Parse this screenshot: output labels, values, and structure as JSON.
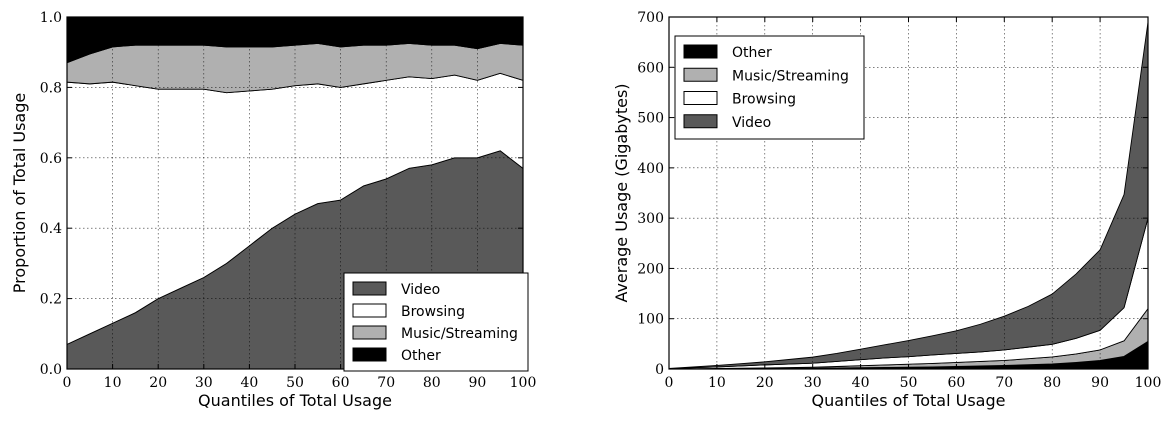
{
  "chart_data": [
    {
      "type": "area",
      "stacked": true,
      "xlabel": "Quantiles of Total Usage",
      "ylabel": "Proportion of Total Usage",
      "xlim": [
        0,
        100
      ],
      "ylim": [
        0,
        1.0
      ],
      "xticks": [
        0,
        10,
        20,
        30,
        40,
        50,
        60,
        70,
        80,
        90,
        100
      ],
      "yticks": [
        0.0,
        0.2,
        0.4,
        0.6,
        0.8,
        1.0
      ],
      "ytick_labels": [
        "0.0",
        "0.2",
        "0.4",
        "0.6",
        "0.8",
        "1.0"
      ],
      "grid": true,
      "legend_position": "lower-right",
      "legend_order": [
        "Video",
        "Browsing",
        "Music/Streaming",
        "Other"
      ],
      "x": [
        0,
        5,
        10,
        15,
        20,
        25,
        30,
        35,
        40,
        45,
        50,
        55,
        60,
        65,
        70,
        75,
        80,
        85,
        90,
        95,
        100
      ],
      "series": [
        {
          "name": "Video",
          "color": "#595959",
          "values": [
            0.07,
            0.1,
            0.13,
            0.16,
            0.2,
            0.23,
            0.26,
            0.3,
            0.35,
            0.4,
            0.44,
            0.47,
            0.48,
            0.52,
            0.54,
            0.57,
            0.58,
            0.6,
            0.6,
            0.62,
            0.57
          ]
        },
        {
          "name": "Browsing",
          "color": "#ffffff",
          "values": [
            0.745,
            0.71,
            0.685,
            0.645,
            0.595,
            0.565,
            0.535,
            0.485,
            0.44,
            0.395,
            0.365,
            0.34,
            0.32,
            0.29,
            0.28,
            0.26,
            0.245,
            0.235,
            0.22,
            0.22,
            0.25
          ]
        },
        {
          "name": "Music/Streaming",
          "color": "#b0b0b0",
          "values": [
            0.055,
            0.085,
            0.1,
            0.115,
            0.125,
            0.125,
            0.125,
            0.13,
            0.125,
            0.12,
            0.115,
            0.115,
            0.115,
            0.11,
            0.1,
            0.095,
            0.095,
            0.085,
            0.09,
            0.085,
            0.1
          ]
        },
        {
          "name": "Other",
          "color": "#000000",
          "values": [
            0.13,
            0.105,
            0.085,
            0.08,
            0.08,
            0.08,
            0.08,
            0.085,
            0.085,
            0.085,
            0.08,
            0.075,
            0.085,
            0.08,
            0.08,
            0.075,
            0.08,
            0.08,
            0.09,
            0.075,
            0.08
          ]
        }
      ]
    },
    {
      "type": "area",
      "stacked": true,
      "xlabel": "Quantiles of Total Usage",
      "ylabel": "Average Usage (Gigabytes)",
      "xlim": [
        0,
        100
      ],
      "ylim": [
        0,
        700
      ],
      "xticks": [
        0,
        10,
        20,
        30,
        40,
        50,
        60,
        70,
        80,
        90,
        100
      ],
      "yticks": [
        0,
        100,
        200,
        300,
        400,
        500,
        600,
        700
      ],
      "ytick_labels": [
        "0",
        "100",
        "200",
        "300",
        "400",
        "500",
        "600",
        "700"
      ],
      "grid": true,
      "legend_position": "upper-left",
      "legend_order": [
        "Other",
        "Music/Streaming",
        "Browsing",
        "Video"
      ],
      "x": [
        0,
        5,
        10,
        15,
        20,
        25,
        30,
        35,
        40,
        45,
        50,
        55,
        60,
        65,
        70,
        75,
        80,
        85,
        90,
        95,
        100
      ],
      "series": [
        {
          "name": "Other",
          "color": "#000000",
          "values": [
            0,
            0.3,
            0.5,
            0.7,
            1,
            1.3,
            1.6,
            2,
            2.5,
            3,
            3.5,
            4,
            5,
            6,
            7,
            8.5,
            10,
            13,
            17,
            25,
            55
          ]
        },
        {
          "name": "Music/Streaming",
          "color": "#b0b0b0",
          "values": [
            0,
            0.3,
            0.6,
            0.9,
            1.2,
            1.6,
            2,
            3,
            4,
            5,
            6,
            7,
            8,
            9,
            10,
            12,
            14,
            17,
            21,
            31,
            65
          ]
        },
        {
          "name": "Browsing",
          "color": "#ffffff",
          "values": [
            0.5,
            2,
            3,
            4.5,
            6,
            7,
            8,
            10,
            12,
            14,
            15,
            17,
            18,
            19,
            21,
            23,
            25,
            31,
            39,
            66,
            180
          ]
        },
        {
          "name": "Video",
          "color": "#595959",
          "values": [
            0.5,
            1.4,
            2.9,
            4.4,
            6,
            9,
            12,
            16,
            21,
            26,
            32,
            38,
            45,
            55,
            67,
            81,
            100,
            128,
            160,
            225,
            390
          ]
        }
      ]
    }
  ]
}
